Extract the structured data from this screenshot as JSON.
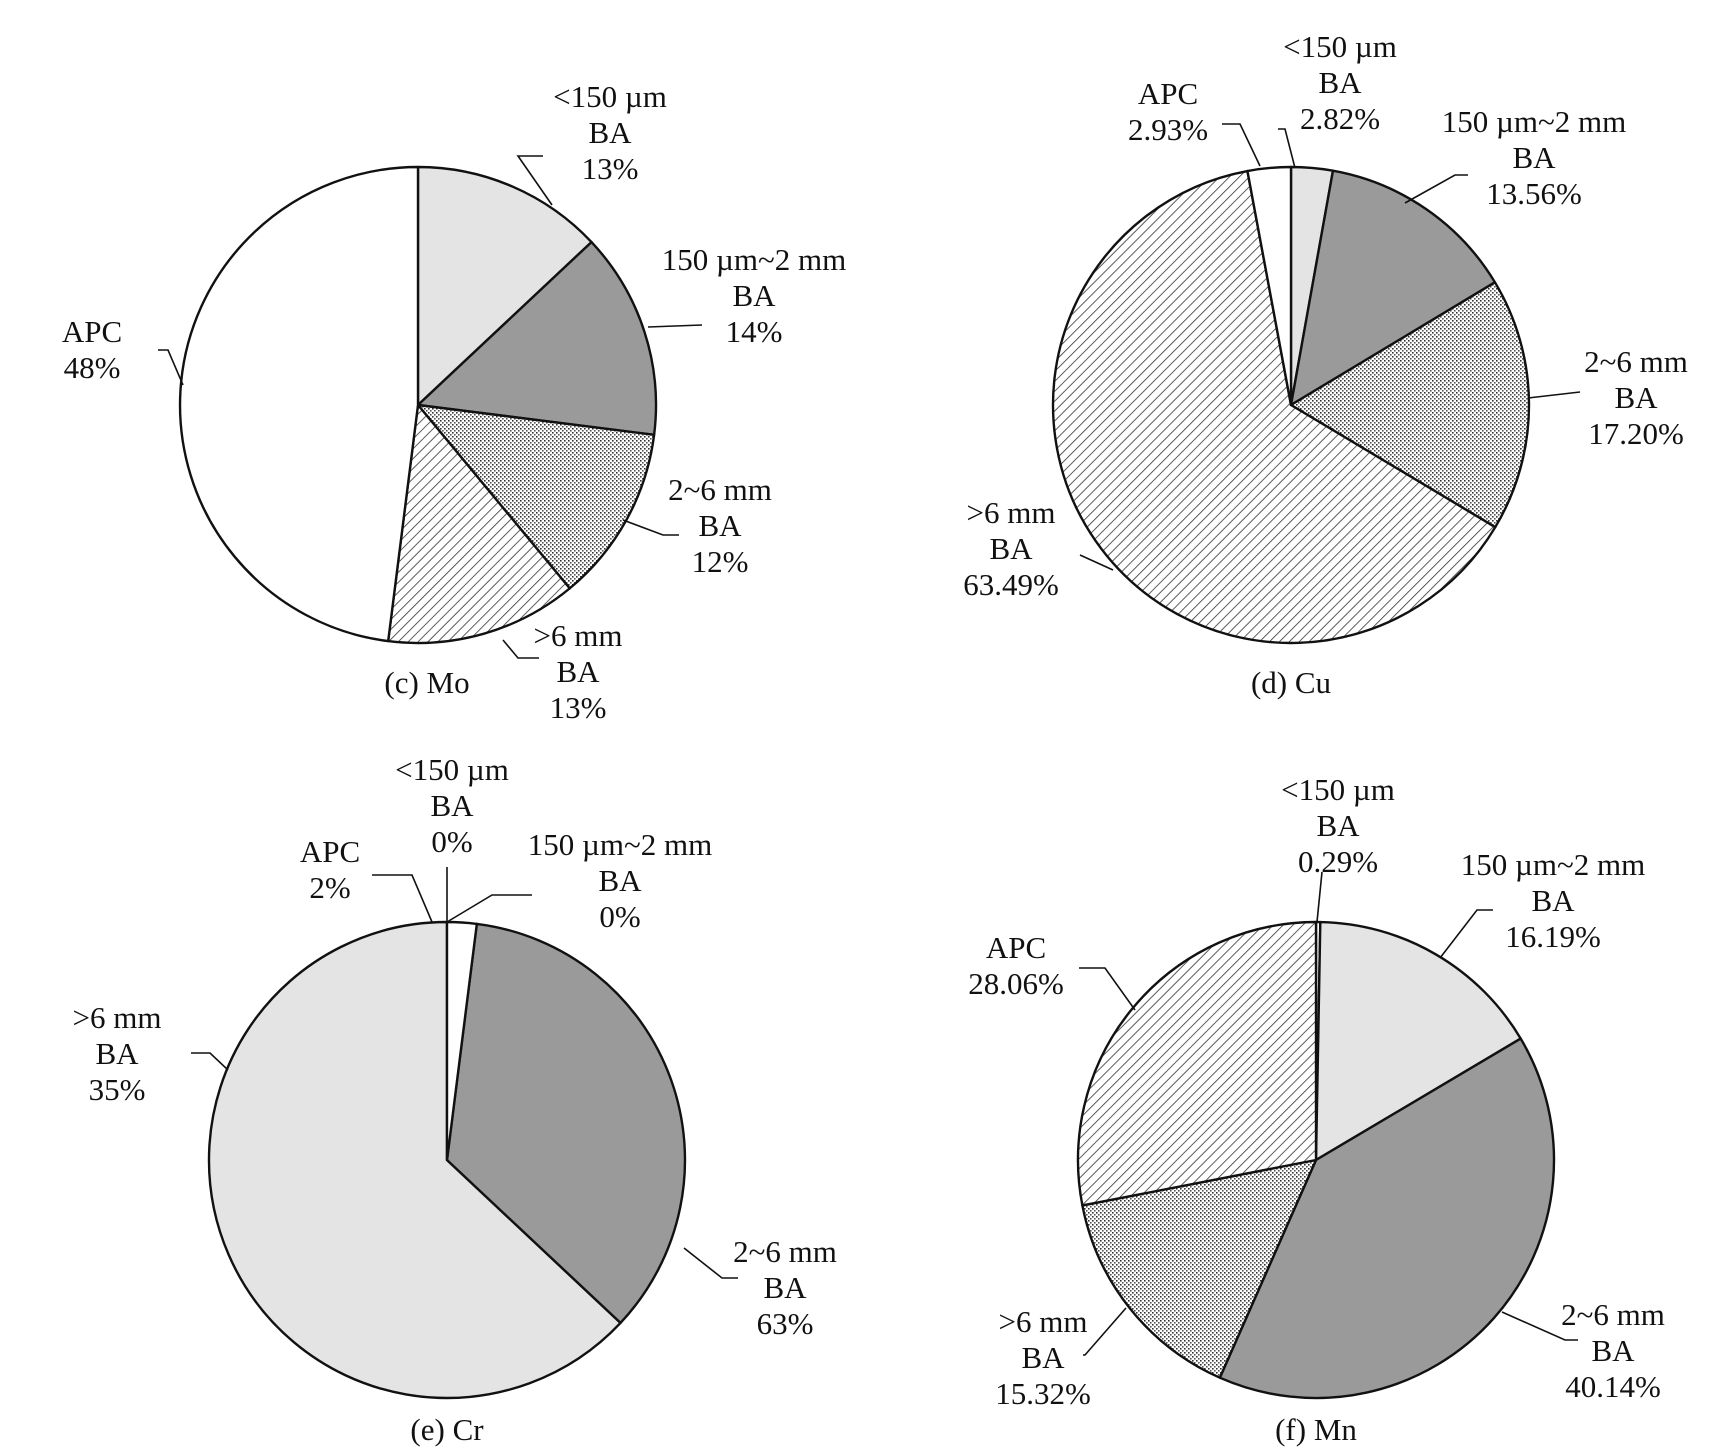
{
  "chart_data": [
    {
      "type": "pie",
      "title": "(c) Mo",
      "slices": [
        {
          "lines": [
            "<150 µm",
            "BA",
            "13%"
          ],
          "value": 13,
          "fill": "light"
        },
        {
          "lines": [
            "150 µm~2 mm",
            "BA",
            "14%"
          ],
          "value": 14,
          "fill": "dark"
        },
        {
          "lines": [
            "2~6 mm",
            "BA",
            "12%"
          ],
          "value": 12,
          "fill": "dots"
        },
        {
          "lines": [
            ">6 mm",
            "BA",
            "13%"
          ],
          "value": 13,
          "fill": "hatch"
        },
        {
          "lines": [
            "APC",
            "48%"
          ],
          "value": 48,
          "fill": "white"
        }
      ]
    },
    {
      "type": "pie",
      "title": "(d) Cu",
      "slices": [
        {
          "lines": [
            "<150 µm",
            "BA",
            "2.82%"
          ],
          "value": 2.82,
          "fill": "light"
        },
        {
          "lines": [
            "150 µm~2 mm",
            "BA",
            "13.56%"
          ],
          "value": 13.56,
          "fill": "dark"
        },
        {
          "lines": [
            "2~6 mm",
            "BA",
            "17.20%"
          ],
          "value": 17.2,
          "fill": "dots"
        },
        {
          "lines": [
            ">6 mm",
            "BA",
            "63.49%"
          ],
          "value": 63.49,
          "fill": "hatch"
        },
        {
          "lines": [
            "APC",
            "2.93%"
          ],
          "value": 2.93,
          "fill": "white"
        }
      ]
    },
    {
      "type": "pie",
      "title": "(e) Cr",
      "slices": [
        {
          "lines": [
            "<150 µm",
            "BA",
            "0%"
          ],
          "value": 0,
          "fill": "dots"
        },
        {
          "lines": [
            "150 µm~2 mm",
            "BA",
            "0%"
          ],
          "value": 0,
          "fill": "hatch"
        },
        {
          "lines": [
            "2~6 mm",
            "BA",
            "63%"
          ],
          "value": 63,
          "fill": "light"
        },
        {
          "lines": [
            ">6 mm",
            "BA",
            "35%"
          ],
          "value": 35,
          "fill": "dark"
        },
        {
          "lines": [
            "APC",
            "2%"
          ],
          "value": 2,
          "fill": "white"
        }
      ]
    },
    {
      "type": "pie",
      "title": "(f) Mn",
      "slices": [
        {
          "lines": [
            "<150 µm",
            "BA",
            "0.29%"
          ],
          "value": 0.29,
          "fill": "white"
        },
        {
          "lines": [
            "150 µm~2 mm",
            "BA",
            "16.19%"
          ],
          "value": 16.19,
          "fill": "light"
        },
        {
          "lines": [
            "2~6 mm",
            "BA",
            "40.14%"
          ],
          "value": 40.14,
          "fill": "dark"
        },
        {
          "lines": [
            ">6 mm",
            "BA",
            "15.32%"
          ],
          "value": 15.32,
          "fill": "dots"
        },
        {
          "lines": [
            "APC",
            "28.06%"
          ],
          "value": 28.06,
          "fill": "hatch"
        }
      ]
    }
  ],
  "colors": {
    "light": "#e4e4e4",
    "dark": "#9a9a9a",
    "white": "#ffffff",
    "stroke": "#111111"
  }
}
